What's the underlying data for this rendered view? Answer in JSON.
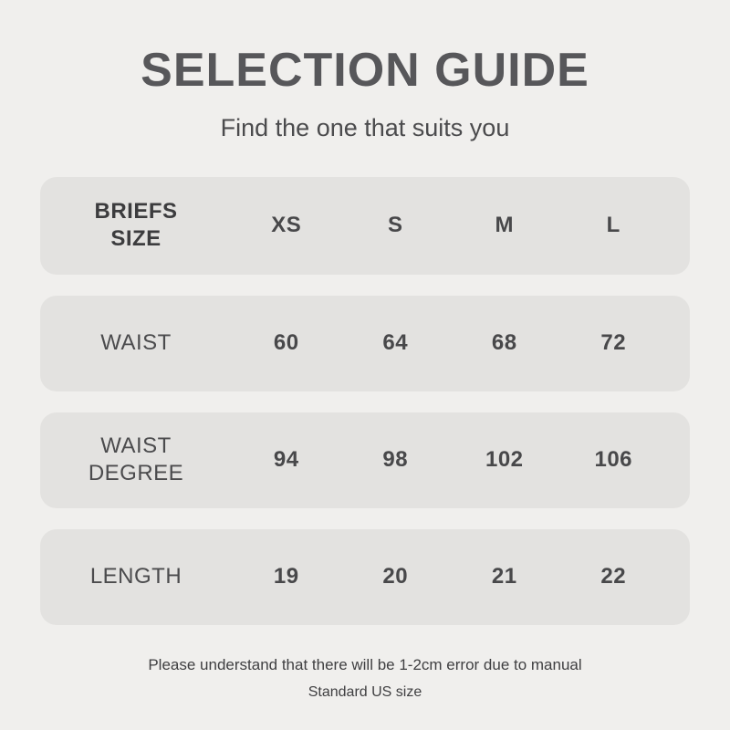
{
  "page": {
    "title": "SELECTION GUIDE",
    "subtitle": "Find the one that suits you"
  },
  "colors": {
    "page_background": "#f0efed",
    "row_background": "#e3e2e0",
    "text_dark": "#48484a",
    "title_gray": "#57575a"
  },
  "table": {
    "rows": [
      {
        "label": "BRIEFS SIZE",
        "values": [
          "XS",
          "S",
          "M",
          "L"
        ]
      },
      {
        "label": "WAIST",
        "values": [
          "60",
          "64",
          "68",
          "72"
        ]
      },
      {
        "label": "WAIST DEGREE",
        "values": [
          "94",
          "98",
          "102",
          "106"
        ]
      },
      {
        "label": "LENGTH",
        "values": [
          "19",
          "20",
          "21",
          "22"
        ]
      }
    ]
  },
  "footer": {
    "line1": "Please understand that there will be 1-2cm error due to manual",
    "line2": "Standard US size"
  }
}
